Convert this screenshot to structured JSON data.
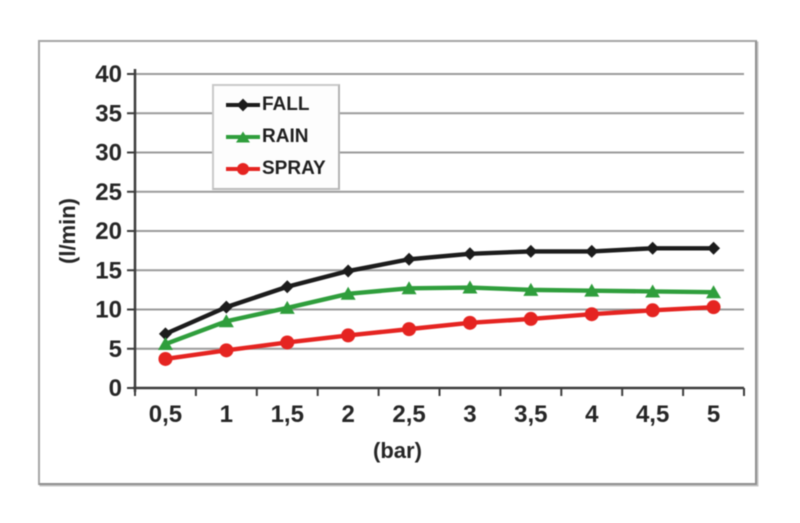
{
  "chart_data": {
    "type": "line",
    "title": "",
    "xlabel": "(bar)",
    "ylabel": "(l/min)",
    "x_values": [
      0.5,
      1,
      1.5,
      2,
      2.5,
      3,
      3.5,
      4,
      4.5,
      5
    ],
    "x_tick_labels": [
      "0,5",
      "1",
      "1,5",
      "2",
      "2,5",
      "3",
      "3,5",
      "4",
      "4,5",
      "5"
    ],
    "y_ticks": [
      0,
      5,
      10,
      15,
      20,
      25,
      30,
      35,
      40
    ],
    "ylim": [
      0,
      40
    ],
    "grid": "horizontal",
    "legend_position": "upper-left-inside",
    "colors": {
      "gridline": "#9b9b9b",
      "axis": "#3c3c3c",
      "tick_text": "#262626",
      "panel_border": "#a6a6a6",
      "background": "#ffffff"
    },
    "series": [
      {
        "name": "FALL",
        "color": "#1c1c1c",
        "marker": "diamond",
        "values": [
          6.9,
          10.3,
          12.9,
          14.9,
          16.4,
          17.1,
          17.4,
          17.4,
          17.8,
          17.8
        ]
      },
      {
        "name": "RAIN",
        "color": "#2f9e3c",
        "marker": "triangle",
        "values": [
          5.6,
          8.5,
          10.2,
          12.0,
          12.7,
          12.8,
          12.5,
          12.4,
          12.3,
          12.2
        ]
      },
      {
        "name": "SPRAY",
        "color": "#e52421",
        "marker": "circle",
        "values": [
          3.7,
          4.8,
          5.8,
          6.7,
          7.5,
          8.3,
          8.8,
          9.4,
          9.9,
          10.3
        ]
      }
    ]
  }
}
